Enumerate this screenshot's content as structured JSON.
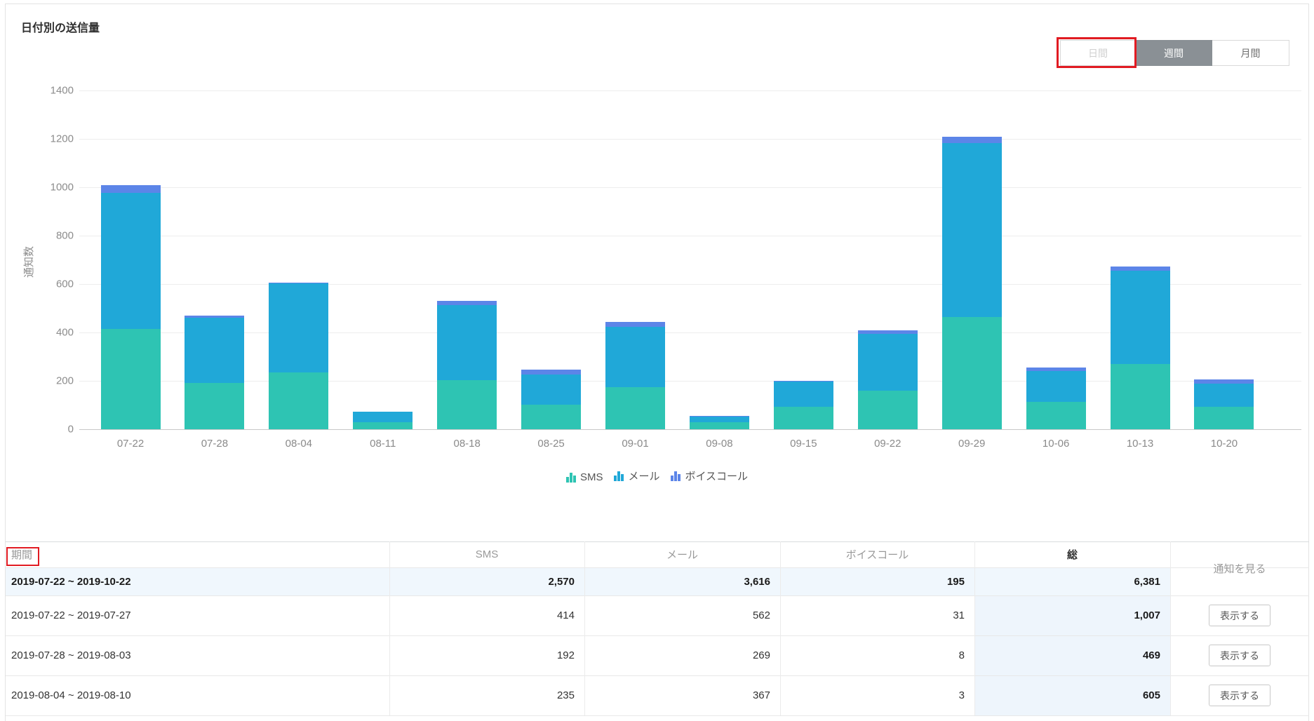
{
  "header": {
    "title": "日付別の送信量"
  },
  "period_toggle": {
    "daily": "日間",
    "weekly": "週間",
    "monthly": "月間",
    "selected": "週間"
  },
  "colors": {
    "sms": "#2ec4b3",
    "mail": "#20a8d8",
    "voice": "#5c85e8",
    "selected_tab_bg": "#8a9095",
    "annotation_red": "#e11b22",
    "summary_row_bg": "#f0f7fd",
    "total_col_bg": "#eef5fc"
  },
  "chart_data": {
    "type": "bar",
    "stacked": true,
    "title": "日付別の送信量",
    "xlabel": "",
    "ylabel": "通知数",
    "ylim": [
      0,
      1400
    ],
    "y_ticks": [
      0,
      200,
      400,
      600,
      800,
      1000,
      1200,
      1400
    ],
    "grid": "horizontal",
    "legend_position": "bottom",
    "categories": [
      "07-22",
      "07-28",
      "08-04",
      "08-11",
      "08-18",
      "08-25",
      "09-01",
      "09-08",
      "09-15",
      "09-22",
      "09-29",
      "10-06",
      "10-13",
      "10-20"
    ],
    "series": [
      {
        "name": "SMS",
        "color": "#2ec4b3",
        "values": [
          414,
          192,
          235,
          30,
          204,
          100,
          175,
          28,
          93,
          160,
          465,
          112,
          269,
          93
        ]
      },
      {
        "name": "メール",
        "color": "#20a8d8",
        "values": [
          562,
          269,
          367,
          43,
          310,
          125,
          250,
          24,
          103,
          235,
          720,
          128,
          385,
          95
        ]
      },
      {
        "name": "ボイスコール",
        "color": "#5c85e8",
        "values": [
          31,
          8,
          3,
          1,
          17,
          20,
          20,
          2,
          3,
          14,
          25,
          15,
          18,
          18
        ]
      }
    ]
  },
  "table": {
    "columns": [
      "期間",
      "SMS",
      "メール",
      "ボイスコール",
      "総"
    ],
    "action_column": "通知を見る",
    "action_button_label": "表示する",
    "summary_row": {
      "period": "2019-07-22 ~ 2019-10-22",
      "values": [
        "2,570",
        "3,616",
        "195",
        "6,381"
      ]
    },
    "rows": [
      {
        "period": "2019-07-22 ~ 2019-07-27",
        "values": [
          "414",
          "562",
          "31",
          "1,007"
        ]
      },
      {
        "period": "2019-07-28 ~ 2019-08-03",
        "values": [
          "192",
          "269",
          "8",
          "469"
        ]
      },
      {
        "period": "2019-08-04 ~ 2019-08-10",
        "values": [
          "235",
          "367",
          "3",
          "605"
        ]
      }
    ]
  }
}
